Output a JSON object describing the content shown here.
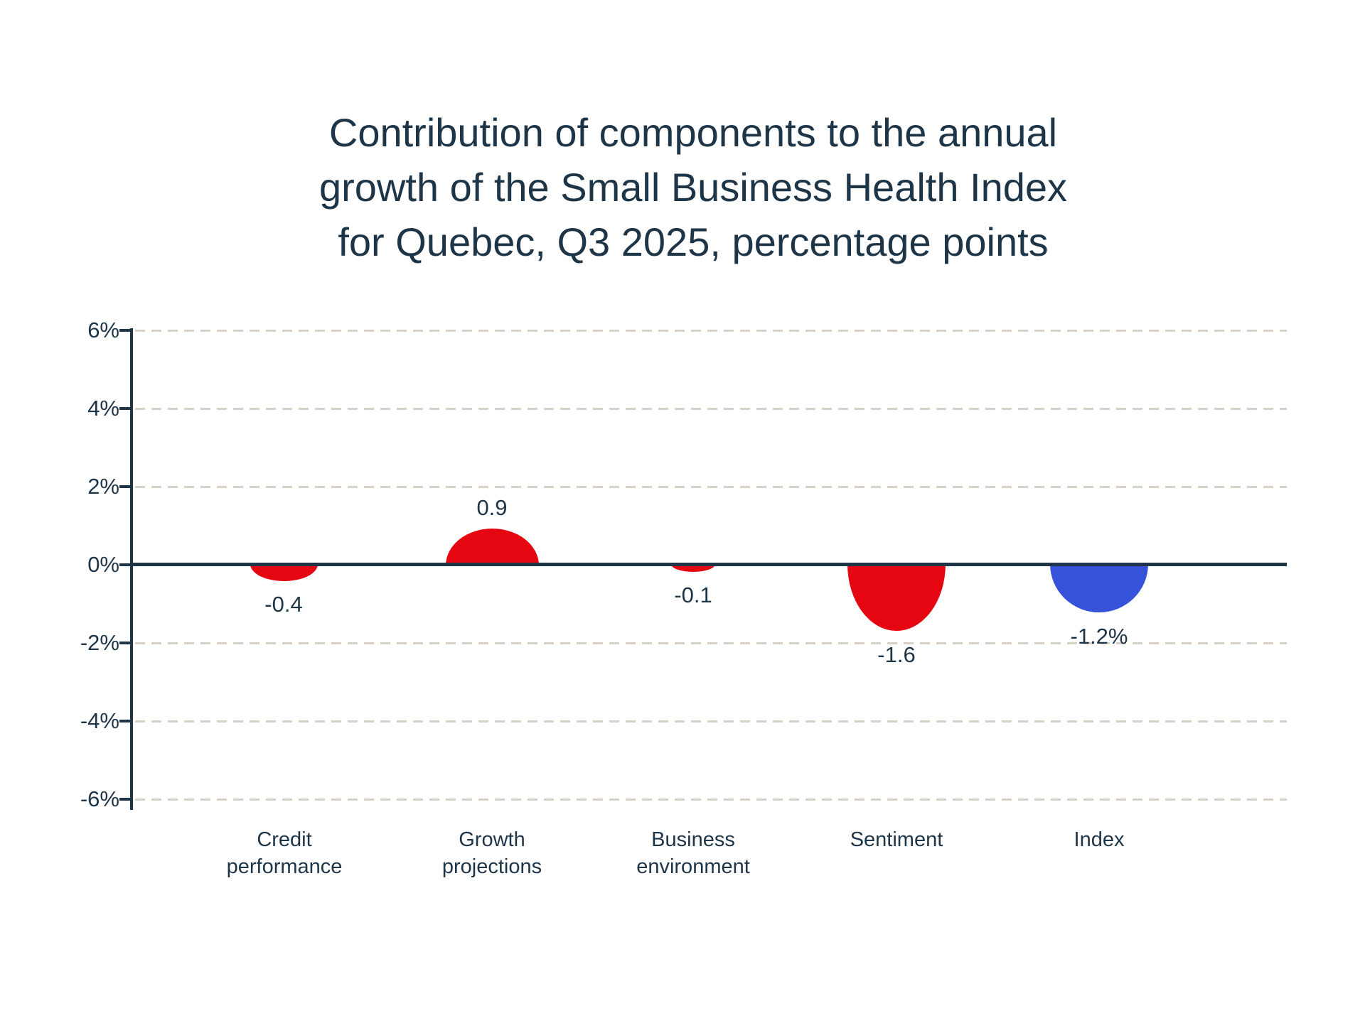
{
  "title": {
    "lines": [
      "Contribution of components to the annual",
      "growth of the Small Business Health Index",
      "for Quebec, Q3 2025, percentage points"
    ]
  },
  "y_axis": {
    "tick_labels": [
      "6%",
      "4%",
      "2%",
      "0%",
      "-2%",
      "-4%",
      "-6%"
    ]
  },
  "chart_data": {
    "type": "bar",
    "variant": "contribution bubbles (half-ellipse marks clipped at zero line)",
    "title": "Contribution of components to the annual growth of the Small Business Health Index for Quebec, Q3 2025, percentage points",
    "categories": [
      "Credit performance",
      "Growth projections",
      "Business environment",
      "Sentiment",
      "Index"
    ],
    "values": [
      -0.4,
      0.9,
      -0.1,
      -1.6,
      -1.2
    ],
    "data_labels": [
      "-0.4",
      "0.9",
      "-0.1",
      "-1.6",
      "-1.2%"
    ],
    "point_colors": [
      "#e60612",
      "#e60612",
      "#e60612",
      "#e60612",
      "#3552d8"
    ],
    "component_color": "#e60612",
    "index_color": "#3552d8",
    "axis_color": "#1e3547",
    "gridline_color": "#d8d1c7",
    "xlabel": "",
    "ylabel": "",
    "ylim": [
      -6,
      6
    ],
    "ytick_step": 2,
    "grid": "horizontal-dashed",
    "zero_line": true,
    "legend": "none"
  }
}
